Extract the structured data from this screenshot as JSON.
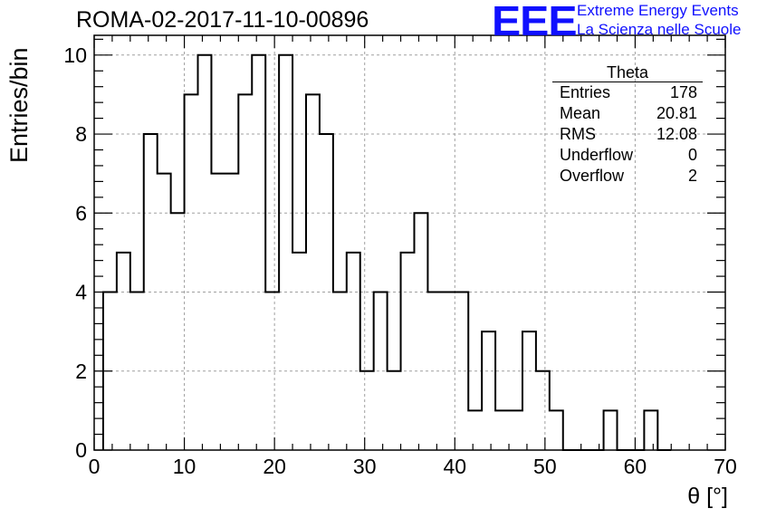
{
  "header": {
    "title": "ROMA-02-2017-11-10-00896"
  },
  "logo": {
    "mark": "EEE",
    "line1": "Extreme Energy Events",
    "line2": "La Scienza nelle Scuole",
    "color": "#1010ff"
  },
  "stats_box": {
    "title": "Theta",
    "rows": [
      {
        "label": "Entries",
        "value": "178"
      },
      {
        "label": "Mean",
        "value": "20.81"
      },
      {
        "label": "RMS",
        "value": "12.08"
      },
      {
        "label": "Underflow",
        "value": "0"
      },
      {
        "label": "Overflow",
        "value": "2"
      }
    ]
  },
  "chart_data": {
    "type": "bar",
    "histogram": true,
    "xlabel": "θ [°]",
    "ylabel": "Entries/bin",
    "xlim": [
      0,
      70
    ],
    "ylim": [
      0,
      10.5
    ],
    "bin_width": 1.5,
    "x_start": 1.0,
    "values": [
      4,
      5,
      4,
      8,
      7,
      6,
      9,
      10,
      7,
      7,
      9,
      10,
      4,
      10,
      5,
      9,
      8,
      4,
      5,
      2,
      4,
      2,
      5,
      6,
      4,
      4,
      4,
      1,
      3,
      1,
      1,
      3,
      2,
      1,
      0,
      0,
      0,
      1,
      0,
      0,
      1,
      0
    ],
    "x_ticks": [
      0,
      10,
      20,
      30,
      40,
      50,
      60,
      70
    ],
    "y_ticks": [
      0,
      2,
      4,
      6,
      8,
      10
    ],
    "grid": true,
    "line_color": "#000000"
  }
}
